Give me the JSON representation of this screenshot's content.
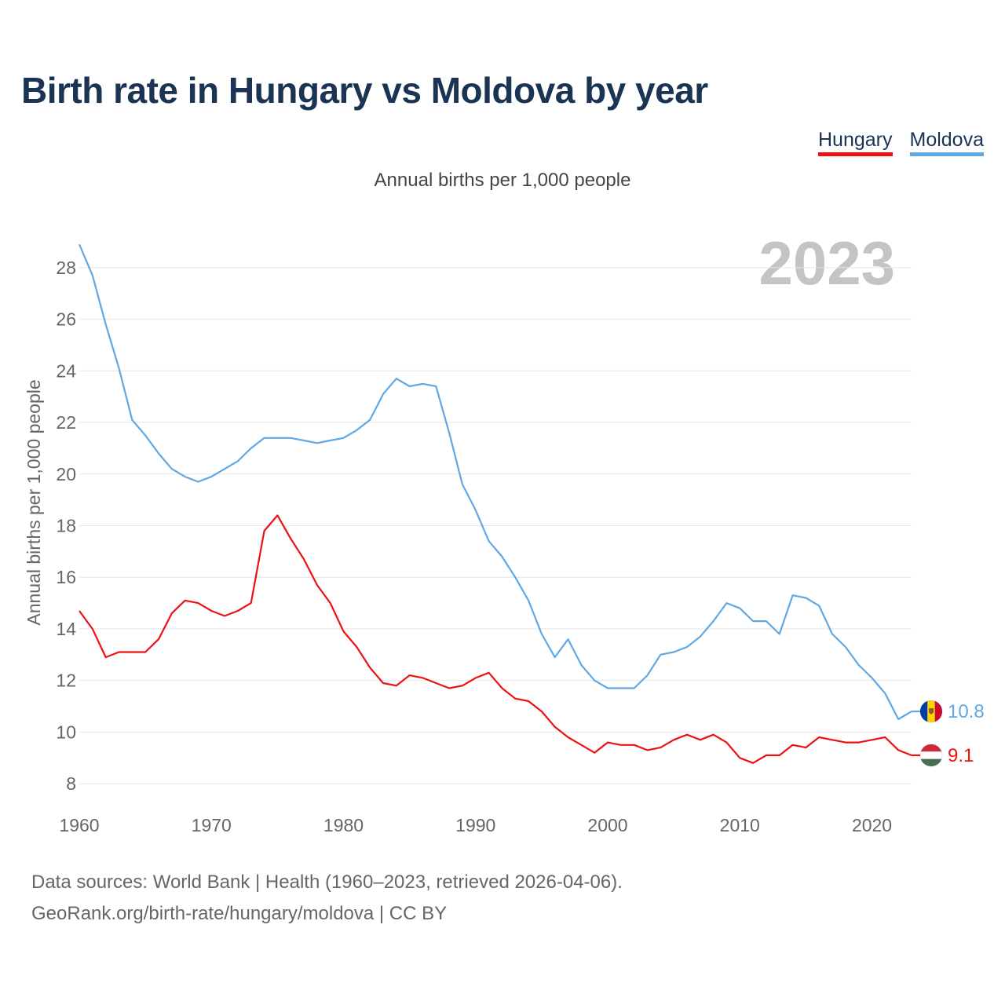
{
  "header": {
    "title": "Birth rate in Hungary vs Moldova by year",
    "subtitle": "Annual births per 1,000 people",
    "year_display": "2023"
  },
  "legend": [
    {
      "label": "Hungary",
      "color": "#ee1111"
    },
    {
      "label": "Moldova",
      "color": "#5ea8e6"
    }
  ],
  "footer": {
    "sources": "Data sources: World Bank | Health (1960–2023, retrieved 2026-04-06).",
    "credit": "GeoRank.org/birth-rate/hungary/moldova | CC BY"
  },
  "chart_data": {
    "type": "line",
    "title": "Birth rate in Hungary vs Moldova by year",
    "subtitle": "Annual births per 1,000 people",
    "xlabel": "",
    "ylabel": "Annual births per 1,000 people",
    "xlim": [
      1960,
      2023
    ],
    "ylim": [
      7,
      29
    ],
    "xticks": [
      1960,
      1970,
      1980,
      1990,
      2000,
      2010,
      2020
    ],
    "yticks": [
      8,
      10,
      12,
      14,
      16,
      18,
      20,
      22,
      24,
      26,
      28
    ],
    "grid": true,
    "x": [
      1960,
      1961,
      1962,
      1963,
      1964,
      1965,
      1966,
      1967,
      1968,
      1969,
      1970,
      1971,
      1972,
      1973,
      1974,
      1975,
      1976,
      1977,
      1978,
      1979,
      1980,
      1981,
      1982,
      1983,
      1984,
      1985,
      1986,
      1987,
      1988,
      1989,
      1990,
      1991,
      1992,
      1993,
      1994,
      1995,
      1996,
      1997,
      1998,
      1999,
      2000,
      2001,
      2002,
      2003,
      2004,
      2005,
      2006,
      2007,
      2008,
      2009,
      2010,
      2011,
      2012,
      2013,
      2014,
      2015,
      2016,
      2017,
      2018,
      2019,
      2020,
      2021,
      2022,
      2023
    ],
    "series": [
      {
        "name": "Hungary",
        "color": "#ee1111",
        "end_label": "9.1",
        "values": [
          14.7,
          14.0,
          12.9,
          13.1,
          13.1,
          13.1,
          13.6,
          14.6,
          15.1,
          15.0,
          14.7,
          14.5,
          14.7,
          15.0,
          17.8,
          18.4,
          17.5,
          16.7,
          15.7,
          15.0,
          13.9,
          13.3,
          12.5,
          11.9,
          11.8,
          12.2,
          12.1,
          11.9,
          11.7,
          11.8,
          12.1,
          12.3,
          11.7,
          11.3,
          11.2,
          10.8,
          10.2,
          9.8,
          9.5,
          9.2,
          9.6,
          9.5,
          9.5,
          9.3,
          9.4,
          9.7,
          9.9,
          9.7,
          9.9,
          9.6,
          9.0,
          8.8,
          9.1,
          9.1,
          9.5,
          9.4,
          9.8,
          9.7,
          9.6,
          9.6,
          9.7,
          9.8,
          9.3,
          9.1
        ]
      },
      {
        "name": "Moldova",
        "color": "#5ea8e6",
        "end_label": "10.8",
        "values": [
          28.9,
          27.7,
          25.8,
          24.1,
          22.1,
          21.5,
          20.8,
          20.2,
          19.9,
          19.7,
          19.9,
          20.2,
          20.5,
          21.0,
          21.4,
          21.4,
          21.4,
          21.3,
          21.2,
          21.3,
          21.4,
          21.7,
          22.1,
          23.1,
          23.7,
          23.4,
          23.5,
          23.4,
          21.6,
          19.6,
          18.6,
          17.4,
          16.8,
          16.0,
          15.1,
          13.8,
          12.9,
          13.6,
          12.6,
          12.0,
          11.7,
          11.7,
          11.7,
          12.2,
          13.0,
          13.1,
          13.3,
          13.7,
          14.3,
          15.0,
          14.8,
          14.3,
          14.3,
          13.8,
          15.3,
          15.2,
          14.9,
          13.8,
          13.3,
          12.6,
          12.1,
          11.5,
          10.5,
          10.8
        ]
      }
    ]
  }
}
